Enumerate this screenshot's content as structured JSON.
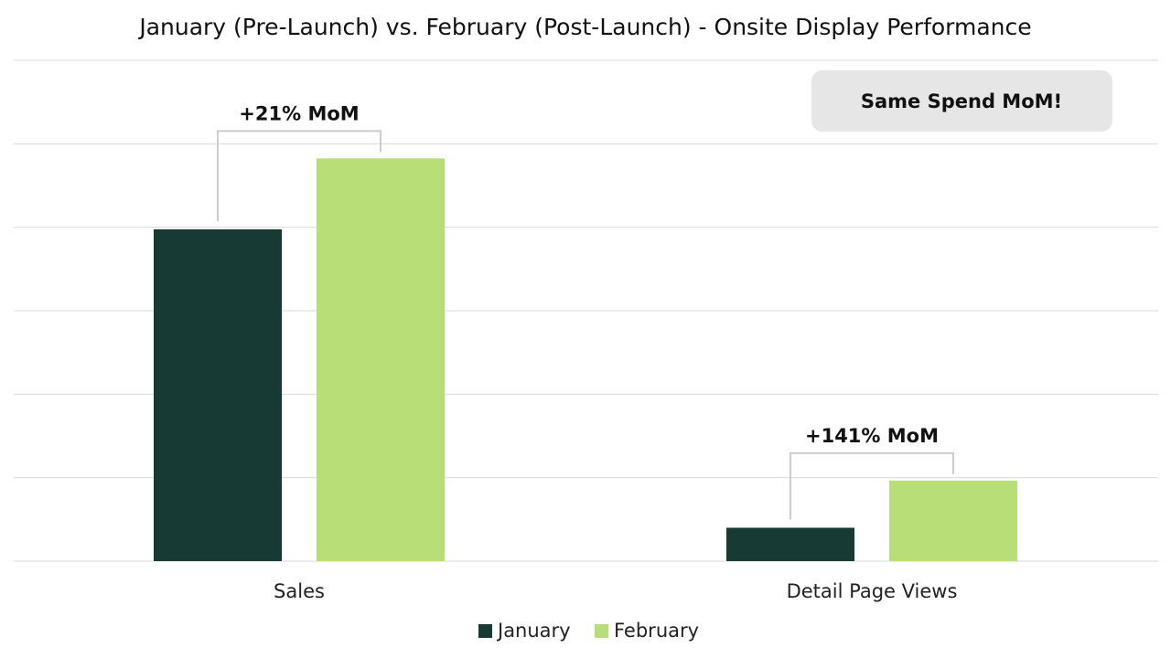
{
  "chart_data": {
    "type": "bar",
    "title": "January (Pre-Launch) vs. February (Post-Launch) - Onsite Display Performance",
    "xlabel": "",
    "ylabel": "",
    "categories": [
      "Sales",
      "Detail Page Views"
    ],
    "series": [
      {
        "name": "January",
        "values": [
          79.5,
          8
        ]
      },
      {
        "name": "February",
        "values": [
          96.5,
          19.3
        ]
      }
    ],
    "ylim": [
      0,
      120
    ],
    "y_tick_labels_visible": false,
    "grid": true,
    "legend_position": "bottom-center",
    "colors": {
      "January": "#173a34",
      "February": "#b8de78",
      "gridline": "#d9d9d9",
      "bracket": "#cccccc",
      "callout_bg": "#e6e6e6"
    },
    "annotations": [
      {
        "text": "+21% MoM",
        "category": "Sales"
      },
      {
        "text": "+141% MoM",
        "category": "Detail Page Views"
      }
    ],
    "callout": {
      "text": "Same Spend MoM!"
    }
  }
}
